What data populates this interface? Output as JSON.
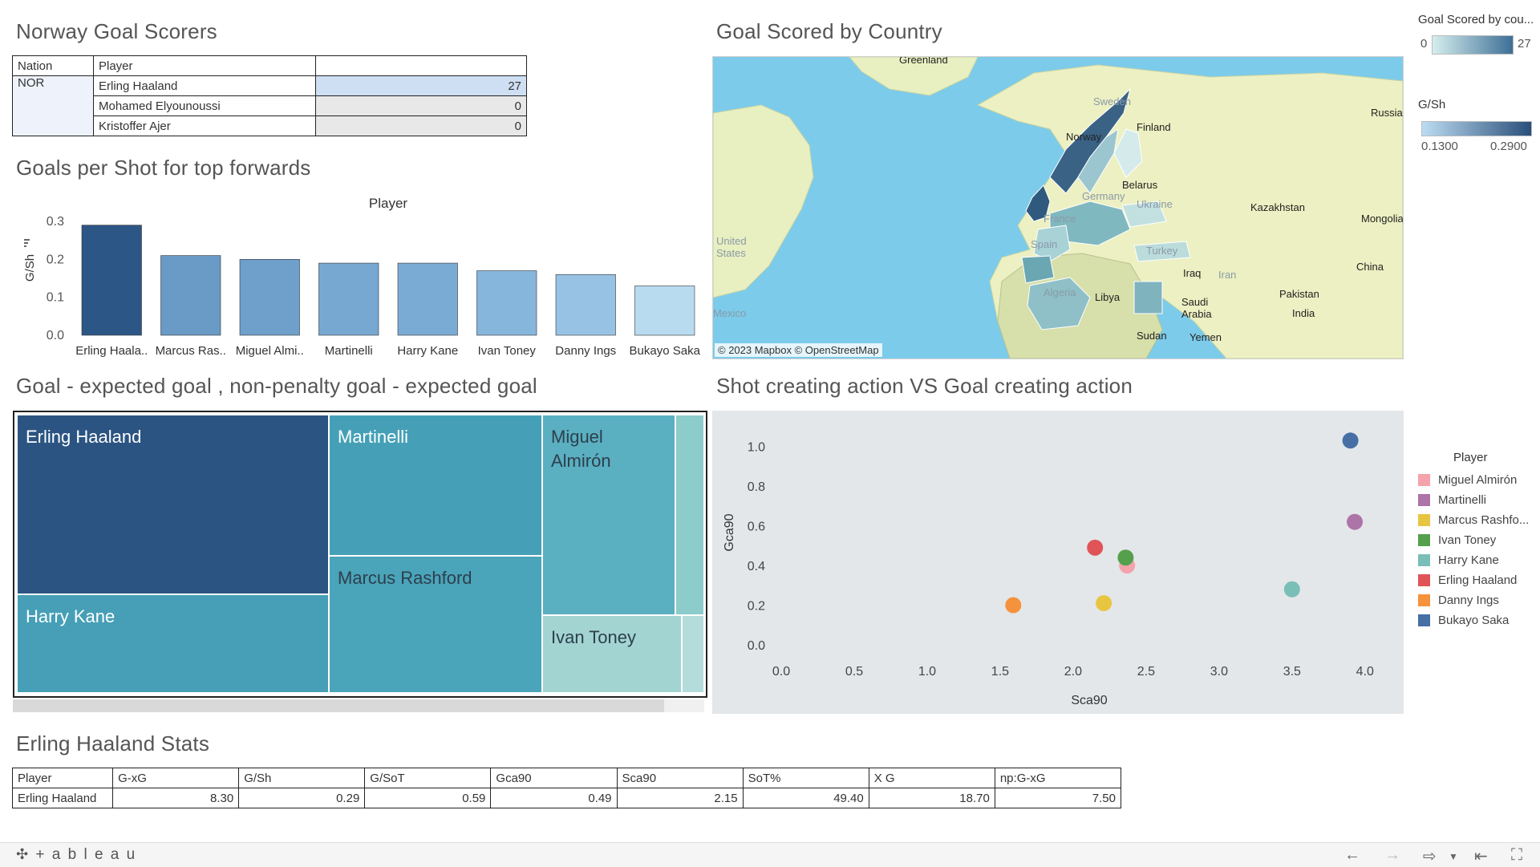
{
  "norway_scorers": {
    "title": "Norway Goal Scorers",
    "headers": {
      "nation": "Nation",
      "player": "Player"
    },
    "nation": "NOR",
    "rows": [
      {
        "player": "Erling Haaland",
        "goals": "27"
      },
      {
        "player": "Mohamed Elyounoussi",
        "goals": "0"
      },
      {
        "player": "Kristoffer Ajer",
        "goals": "0"
      }
    ]
  },
  "gps_chart": {
    "title": "Goals per Shot for top forwards",
    "header": "Player",
    "ylabel": "G/Sh"
  },
  "chart_data": [
    {
      "type": "bar",
      "title": "Goals per Shot for top forwards",
      "xlabel": "Player",
      "ylabel": "G/Sh",
      "categories": [
        "Erling Haala..",
        "Marcus Ras..",
        "Miguel Almi..",
        "Martinelli",
        "Harry Kane",
        "Ivan Toney",
        "Danny Ings",
        "Bukayo Saka"
      ],
      "values": [
        0.29,
        0.21,
        0.2,
        0.19,
        0.19,
        0.17,
        0.16,
        0.13
      ],
      "colors": [
        "#2c5686",
        "#6a9ac6",
        "#6f9fcb",
        "#77a8d2",
        "#7aabd4",
        "#87b6dc",
        "#98c2e4",
        "#b9dbf0"
      ],
      "yticks": [
        0.0,
        0.1,
        0.2,
        0.3
      ],
      "ylim": [
        0,
        0.3
      ]
    },
    {
      "type": "scatter",
      "title": "Shot creating action VS Goal creating action",
      "xlabel": "Sca90",
      "ylabel": "Gca90",
      "xlim": [
        0,
        4.1
      ],
      "ylim": [
        0,
        1.1
      ],
      "xticks": [
        "0.0",
        "0.5",
        "1.0",
        "1.5",
        "2.0",
        "2.5",
        "3.0",
        "3.5",
        "4.0"
      ],
      "yticks": [
        "0.0",
        "0.2",
        "0.4",
        "0.6",
        "0.8",
        "1.0"
      ],
      "series": [
        {
          "name": "Miguel Almirón",
          "color": "#f4a3ad",
          "x": 2.37,
          "y": 0.4
        },
        {
          "name": "Martinelli",
          "color": "#ad74a8",
          "x": 3.93,
          "y": 0.62
        },
        {
          "name": "Marcus Rashford",
          "color": "#e8c541",
          "x": 2.21,
          "y": 0.21
        },
        {
          "name": "Ivan Toney",
          "color": "#55a04d",
          "x": 2.36,
          "y": 0.44
        },
        {
          "name": "Harry Kane",
          "color": "#7abfb7",
          "x": 3.5,
          "y": 0.28
        },
        {
          "name": "Erling Haaland",
          "color": "#e05458",
          "x": 2.15,
          "y": 0.49
        },
        {
          "name": "Danny Ings",
          "color": "#f5923c",
          "x": 1.59,
          "y": 0.2
        },
        {
          "name": "Bukayo Saka",
          "color": "#456fa5",
          "x": 3.9,
          "y": 1.03
        }
      ]
    }
  ],
  "map": {
    "title": "Goal Scored by Country",
    "labels": {
      "greenland": "Greenland",
      "sweden": "Sweden",
      "finland": "Finland",
      "norway": "Norway",
      "russia": "Russia",
      "belarus": "Belarus",
      "germany": "Germany",
      "ukraine": "Ukraine",
      "france": "France",
      "kazakhstan": "Kazakhstan",
      "mongolia": "Mongolia",
      "united_states": "United States",
      "spain": "Spain",
      "turkey": "Turkey",
      "china": "China",
      "iraq": "Iraq",
      "iran": "Iran",
      "algeria": "Algeria",
      "libya": "Libya",
      "saudi_arabia": "Saudi Arabia",
      "pakistan": "Pakistan",
      "india": "India",
      "mexico": "Mexico",
      "sudan": "Sudan",
      "yemen": "Yemen"
    },
    "attribution": "© 2023 Mapbox  © OpenStreetMap"
  },
  "legend_goals": {
    "title": "Goal Scored by cou...",
    "min": "0",
    "max": "27"
  },
  "legend_gsh": {
    "title": "G/Sh",
    "min": "0.1300",
    "max": "0.2900"
  },
  "treemap": {
    "title": "Goal - expected goal , non-penalty goal - expected goal",
    "tiles": {
      "haaland": "Erling Haaland",
      "martinelli": "Martinelli",
      "almiron": "Miguel Almirón",
      "kane": "Harry Kane",
      "rashford": "Marcus Rashford",
      "toney": "Ivan Toney"
    }
  },
  "scatter": {
    "title": "Shot creating action VS Goal creating action",
    "legend_title": "Player",
    "legend_items": [
      "Miguel Almirón",
      "Martinelli",
      "Marcus Rashfo...",
      "Ivan Toney",
      "Harry Kane",
      "Erling Haaland",
      "Danny Ings",
      "Bukayo Saka"
    ]
  },
  "stats": {
    "title": "Erling Haaland Stats",
    "headers": [
      "Player",
      "G-xG",
      "G/Sh",
      "G/SoT",
      "Gca90",
      "Sca90",
      "SoT%",
      "X G",
      "np:G-xG"
    ],
    "row": [
      "Erling Haaland",
      "8.30",
      "0.29",
      "0.59",
      "0.49",
      "2.15",
      "49.40",
      "18.70",
      "7.50"
    ]
  },
  "footer": {
    "logo": "+ a b l e a u"
  }
}
